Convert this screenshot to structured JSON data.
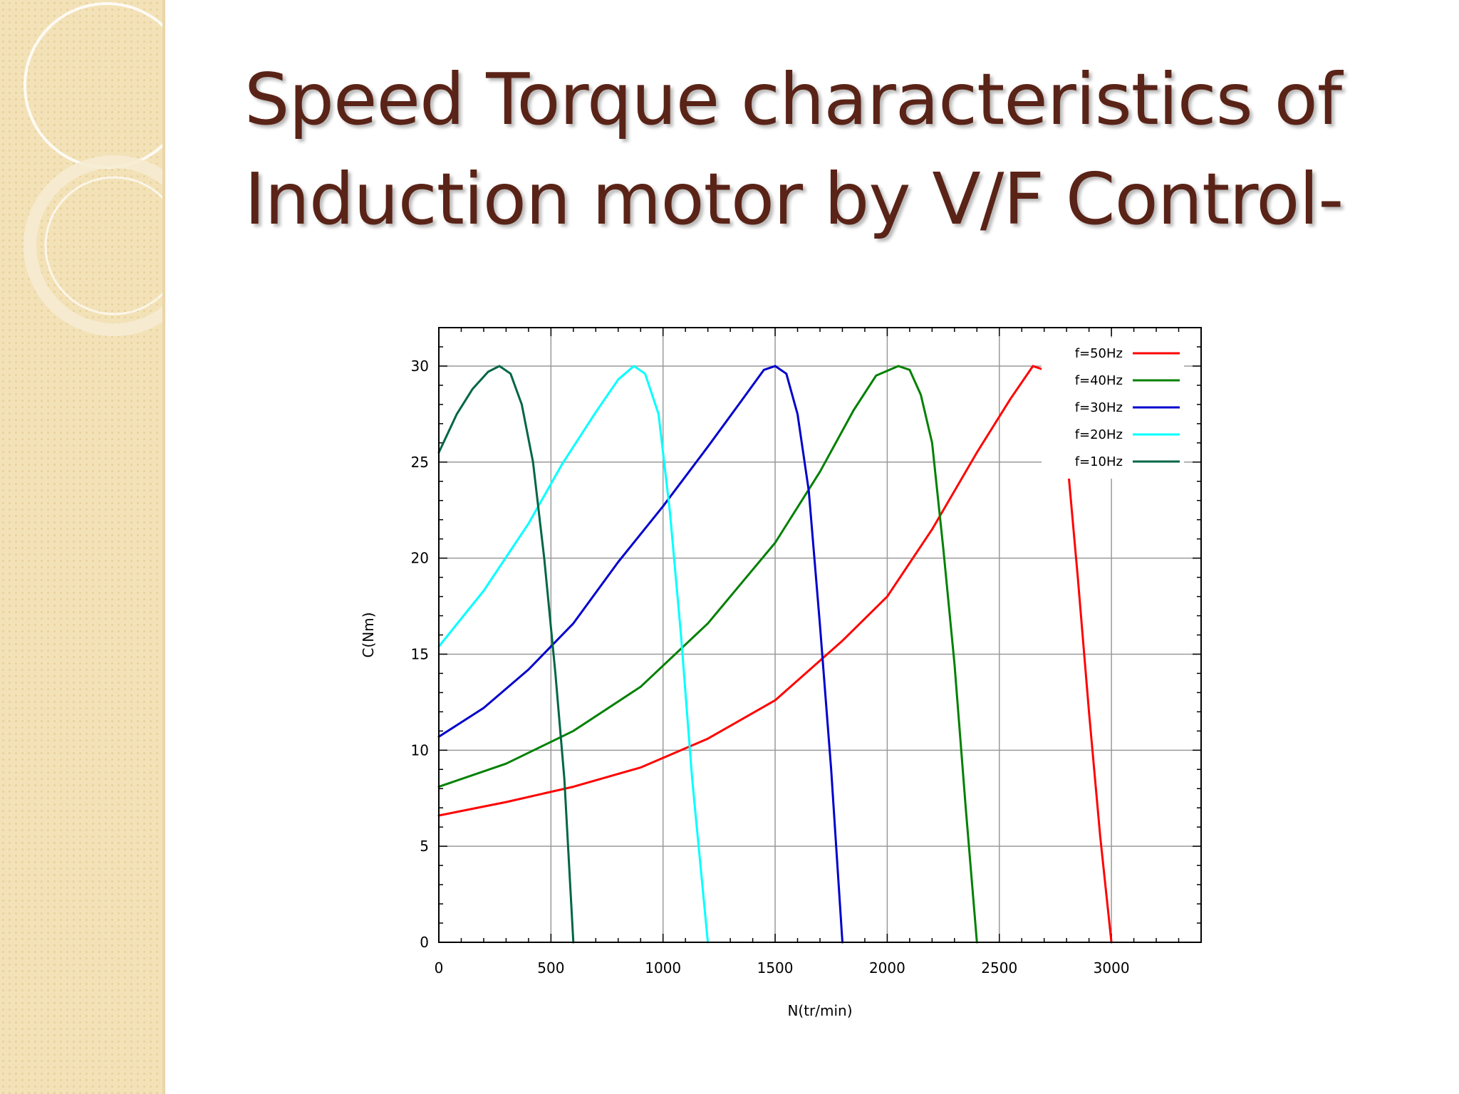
{
  "slide": {
    "title_line1": "Speed Torque characteristics of",
    "title_line2": "Induction motor by V/F Control-"
  },
  "chart_data": {
    "type": "line",
    "title": "",
    "xlabel": "N(tr/min)",
    "ylabel": "C(Nm)",
    "xlim": [
      0,
      3400
    ],
    "ylim": [
      0,
      32
    ],
    "xticks": [
      0,
      500,
      1000,
      1500,
      2000,
      2500,
      3000
    ],
    "yticks": [
      0,
      5,
      10,
      15,
      20,
      25,
      30
    ],
    "grid": true,
    "legend_position": "top-right",
    "series": [
      {
        "name": "f=50Hz",
        "color": "#ff0000",
        "points": [
          [
            0,
            6.6
          ],
          [
            300,
            7.3
          ],
          [
            600,
            8.1
          ],
          [
            900,
            9.1
          ],
          [
            1200,
            10.6
          ],
          [
            1500,
            12.6
          ],
          [
            1800,
            15.7
          ],
          [
            2000,
            18.0
          ],
          [
            2200,
            21.5
          ],
          [
            2400,
            25.5
          ],
          [
            2550,
            28.3
          ],
          [
            2650,
            30.0
          ],
          [
            2700,
            29.8
          ],
          [
            2750,
            28.5
          ],
          [
            2800,
            25.5
          ],
          [
            2850,
            19.0
          ],
          [
            2900,
            12.0
          ],
          [
            2950,
            5.5
          ],
          [
            3000,
            0
          ]
        ]
      },
      {
        "name": "f=40Hz",
        "color": "#008000",
        "points": [
          [
            0,
            8.1
          ],
          [
            300,
            9.3
          ],
          [
            600,
            11.0
          ],
          [
            900,
            13.3
          ],
          [
            1200,
            16.6
          ],
          [
            1500,
            20.8
          ],
          [
            1700,
            24.5
          ],
          [
            1850,
            27.7
          ],
          [
            1950,
            29.5
          ],
          [
            2050,
            30.0
          ],
          [
            2100,
            29.8
          ],
          [
            2150,
            28.5
          ],
          [
            2200,
            26.0
          ],
          [
            2250,
            20.5
          ],
          [
            2300,
            14.5
          ],
          [
            2350,
            7.0
          ],
          [
            2400,
            0
          ]
        ]
      },
      {
        "name": "f=30Hz",
        "color": "#0000cc",
        "points": [
          [
            0,
            10.7
          ],
          [
            200,
            12.2
          ],
          [
            400,
            14.2
          ],
          [
            600,
            16.6
          ],
          [
            800,
            19.8
          ],
          [
            1000,
            22.7
          ],
          [
            1200,
            25.8
          ],
          [
            1350,
            28.2
          ],
          [
            1450,
            29.8
          ],
          [
            1500,
            30.0
          ],
          [
            1550,
            29.6
          ],
          [
            1600,
            27.5
          ],
          [
            1650,
            23.5
          ],
          [
            1700,
            16.5
          ],
          [
            1750,
            9.0
          ],
          [
            1800,
            0
          ]
        ]
      },
      {
        "name": "f=20Hz",
        "color": "#00ffff",
        "points": [
          [
            0,
            15.4
          ],
          [
            200,
            18.3
          ],
          [
            400,
            21.8
          ],
          [
            550,
            24.9
          ],
          [
            700,
            27.6
          ],
          [
            800,
            29.3
          ],
          [
            870,
            30.0
          ],
          [
            920,
            29.6
          ],
          [
            980,
            27.5
          ],
          [
            1030,
            22.5
          ],
          [
            1080,
            16.0
          ],
          [
            1130,
            8.5
          ],
          [
            1200,
            0
          ]
        ]
      },
      {
        "name": "f=10Hz",
        "color": "#006644",
        "points": [
          [
            0,
            25.5
          ],
          [
            80,
            27.5
          ],
          [
            150,
            28.8
          ],
          [
            220,
            29.7
          ],
          [
            270,
            30.0
          ],
          [
            320,
            29.6
          ],
          [
            370,
            28.0
          ],
          [
            420,
            25.0
          ],
          [
            470,
            20.0
          ],
          [
            520,
            14.0
          ],
          [
            560,
            8.5
          ],
          [
            600,
            0
          ]
        ]
      }
    ]
  }
}
